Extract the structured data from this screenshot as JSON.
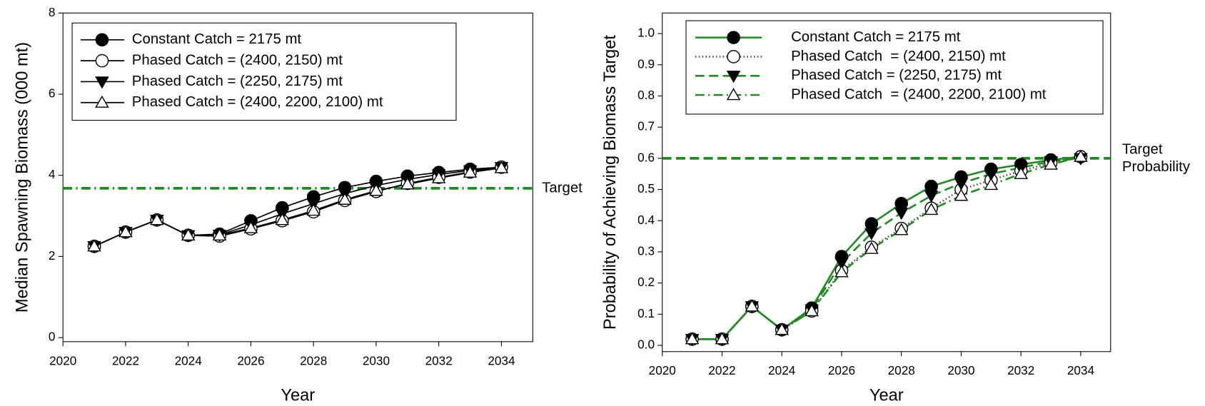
{
  "chart_data": [
    {
      "type": "line",
      "ylabel": "Median Spawning Biomass (000 mt)",
      "xlabel": "Year",
      "x": [
        2021,
        2022,
        2023,
        2024,
        2025,
        2026,
        2027,
        2028,
        2029,
        2030,
        2031,
        2032,
        2033,
        2034
      ],
      "xlim": [
        2020,
        2035
      ],
      "xticks": [
        2020,
        2022,
        2024,
        2026,
        2028,
        2030,
        2032,
        2034
      ],
      "ylim": [
        -0.1,
        8
      ],
      "yticks": [
        0,
        2,
        4,
        6,
        8
      ],
      "line_width": 1.6,
      "series": [
        {
          "name": "Constant Catch = 2175 mt",
          "color": "#000000",
          "dash": "solid",
          "marker": "circle",
          "marker_fill": "#000000",
          "values": [
            2.25,
            2.6,
            2.9,
            2.52,
            2.55,
            2.88,
            3.2,
            3.47,
            3.7,
            3.85,
            3.98,
            4.07,
            4.15,
            4.2
          ]
        },
        {
          "name": "Phased Catch = (2400, 2150) mt",
          "color": "#000000",
          "dash": "solid",
          "marker": "circle",
          "marker_fill": "#ffffff",
          "values": [
            2.25,
            2.6,
            2.9,
            2.52,
            2.5,
            2.68,
            2.88,
            3.1,
            3.38,
            3.6,
            3.8,
            3.95,
            4.08,
            4.2
          ]
        },
        {
          "name": "Phased Catch = (2250, 2175) mt",
          "color": "#000000",
          "dash": "solid",
          "marker": "triangle-down",
          "marker_fill": "#000000",
          "values": [
            2.25,
            2.6,
            2.9,
            2.52,
            2.53,
            2.78,
            3.05,
            3.3,
            3.55,
            3.75,
            3.9,
            4.02,
            4.12,
            4.2
          ]
        },
        {
          "name": "Phased Catch = (2400, 2200, 2100) mt",
          "color": "#000000",
          "dash": "solid",
          "marker": "triangle-up",
          "marker_fill": "#ffffff",
          "values": [
            2.25,
            2.6,
            2.9,
            2.52,
            2.52,
            2.7,
            2.9,
            3.13,
            3.4,
            3.62,
            3.78,
            3.93,
            4.07,
            4.18
          ]
        }
      ],
      "target": {
        "value": 3.68,
        "color": "#1e8c1e",
        "dash": "dashdot",
        "labels": [
          "Target"
        ]
      }
    },
    {
      "type": "line",
      "ylabel": "Probability of Achieving Biomass Target",
      "xlabel": "Year",
      "x": [
        2021,
        2022,
        2023,
        2024,
        2025,
        2026,
        2027,
        2028,
        2029,
        2030,
        2031,
        2032,
        2033,
        2034
      ],
      "xlim": [
        2020,
        2035
      ],
      "xticks": [
        2020,
        2022,
        2024,
        2026,
        2028,
        2030,
        2032,
        2034
      ],
      "ylim": [
        -0.02,
        1.066
      ],
      "yticks": [
        {
          "value": 0,
          "label": "0.0"
        },
        0.1,
        0.2,
        0.3,
        0.4,
        0.5,
        0.6,
        0.7,
        0.8,
        0.9,
        {
          "value": 1,
          "label": "1.0"
        }
      ],
      "line_width": 2.4,
      "series": [
        {
          "name": "Constant Catch = 2175 mt",
          "color": "#1e8c1e",
          "dash": "solid",
          "marker": "circle",
          "marker_fill": "#000000",
          "values": [
            0.02,
            0.02,
            0.125,
            0.05,
            0.12,
            0.285,
            0.39,
            0.455,
            0.51,
            0.54,
            0.565,
            0.58,
            0.595,
            0.605
          ]
        },
        {
          "name": "Phased Catch  = (2400, 2150) mt",
          "color": "#555555",
          "dash": "dotted",
          "marker": "circle",
          "marker_fill": "#ffffff",
          "values": [
            0.02,
            0.02,
            0.125,
            0.05,
            0.11,
            0.24,
            0.315,
            0.375,
            0.44,
            0.5,
            0.53,
            0.56,
            0.585,
            0.605
          ]
        },
        {
          "name": "Phased Catch = (2250, 2175) mt",
          "color": "#1e8c1e",
          "dash": "dashed",
          "marker": "triangle-down",
          "marker_fill": "#000000",
          "values": [
            0.02,
            0.02,
            0.125,
            0.05,
            0.115,
            0.265,
            0.36,
            0.425,
            0.48,
            0.52,
            0.55,
            0.57,
            0.59,
            0.6
          ]
        },
        {
          "name": "Phased Catch  = (2400, 2200, 2100) mt",
          "color": "#1e8c1e",
          "dash": "dashdot",
          "marker": "triangle-up",
          "marker_fill": "#ffffff",
          "values": [
            0.02,
            0.02,
            0.125,
            0.05,
            0.11,
            0.235,
            0.31,
            0.37,
            0.435,
            0.48,
            0.515,
            0.55,
            0.58,
            0.605
          ]
        }
      ],
      "target": {
        "value": 0.6,
        "color": "#1e8c1e",
        "dash": "dashed",
        "labels": [
          "Target",
          "Probability"
        ]
      }
    }
  ]
}
